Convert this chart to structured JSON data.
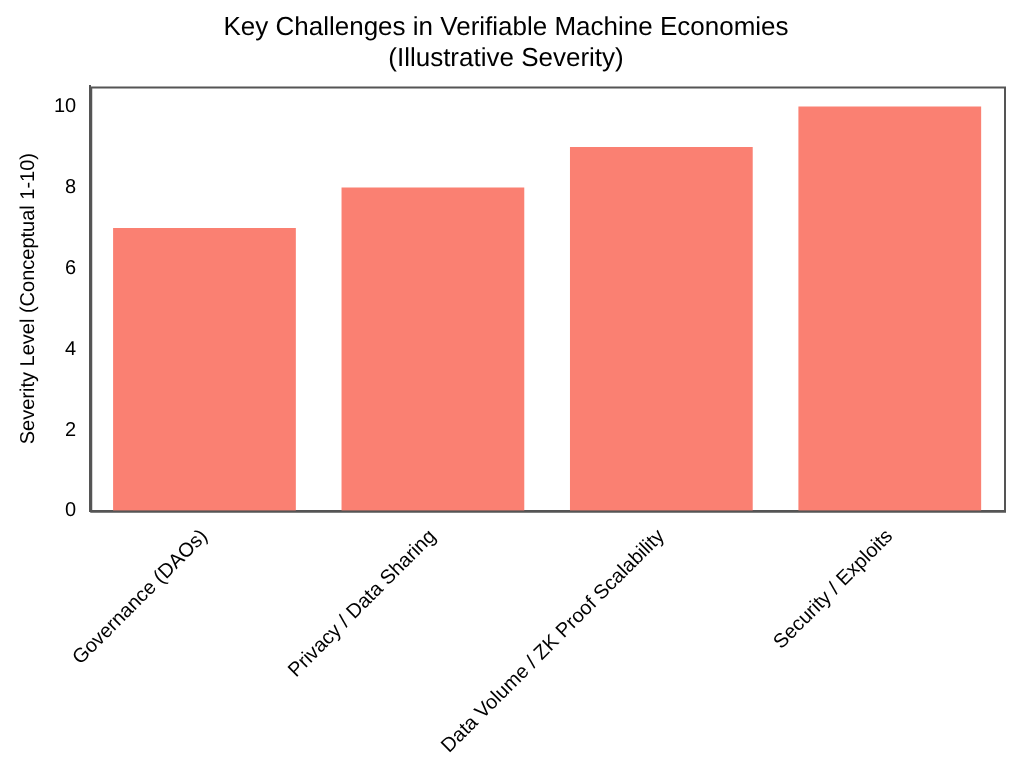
{
  "chart_data": {
    "type": "bar",
    "title": "Key Challenges in Verifiable Machine Economies\n(Illustrative Severity)",
    "ylabel": "Severity Level (Conceptual 1-10)",
    "categories": [
      "Governance (DAOs)",
      "Privacy / Data Sharing",
      "Data Volume / ZK Proof Scalability",
      "Security / Exploits"
    ],
    "values": [
      7,
      8,
      9,
      10
    ],
    "color": "#fa8072",
    "ylim": [
      0,
      10.5
    ],
    "yticks": [
      0,
      2,
      4,
      6,
      8,
      10
    ],
    "grid": false,
    "legend": false
  }
}
